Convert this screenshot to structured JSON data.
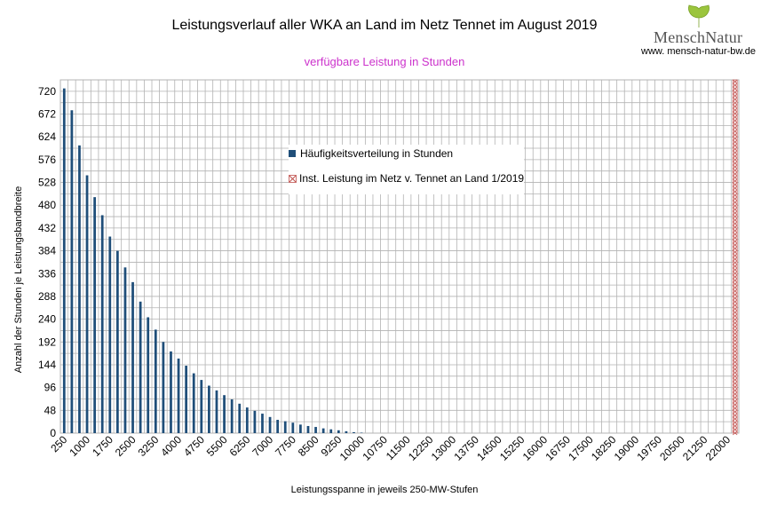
{
  "header": {
    "title": "Leistungsverlauf aller WKA an Land im Netz Tennet im August 2019",
    "subtitle": "verfügbare Leistung in Stunden",
    "subtitle_color": "#cc33cc"
  },
  "logo": {
    "text": "MenschNatur",
    "url": "www. mensch-natur-bw.de",
    "leaf_color": "#9bc53d"
  },
  "chart_data": {
    "type": "bar",
    "title": "Leistungsverlauf aller WKA an Land im Netz Tennet im August 2019",
    "subtitle": "verfügbare Leistung in Stunden",
    "xlabel": "Leistungsspanne in jeweils 250-MW-Stufen",
    "ylabel": "Anzahl der Stunden je Leistungsbandbreite",
    "ylim": [
      0,
      744
    ],
    "yticks": [
      0,
      48,
      96,
      144,
      192,
      240,
      288,
      336,
      384,
      432,
      480,
      528,
      576,
      624,
      672,
      720
    ],
    "xtick_labels": [
      "250",
      "1000",
      "1750",
      "2500",
      "3250",
      "4000",
      "4750",
      "5500",
      "6250",
      "7000",
      "7750",
      "8500",
      "9250",
      "10000",
      "10750",
      "11500",
      "12250",
      "13000",
      "13750",
      "14500",
      "15250",
      "16000",
      "16750",
      "17500",
      "18250",
      "19000",
      "19750",
      "20500",
      "21250",
      "22000"
    ],
    "grid": true,
    "legend_position": "top-center",
    "bar_color": "#1f4e79",
    "categories": [
      250,
      500,
      750,
      1000,
      1250,
      1500,
      1750,
      2000,
      2250,
      2500,
      2750,
      3000,
      3250,
      3500,
      3750,
      4000,
      4250,
      4500,
      4750,
      5000,
      5250,
      5500,
      5750,
      6000,
      6250,
      6500,
      6750,
      7000,
      7250,
      7500,
      7750,
      8000,
      8250,
      8500,
      8750,
      9000,
      9250,
      9500,
      9750,
      10000
    ],
    "series": [
      {
        "name": "Häufigkeitsverteilung in Stunden",
        "values": [
          726,
          680,
          606,
          543,
          497,
          459,
          414,
          384,
          349,
          318,
          277,
          244,
          218,
          192,
          172,
          157,
          142,
          126,
          112,
          100,
          90,
          80,
          71,
          62,
          54,
          47,
          41,
          34,
          28,
          25,
          22,
          18,
          15,
          13,
          10,
          8,
          6,
          4,
          2,
          1
        ]
      },
      {
        "name": "Inst. Leistung im Netz v. Tennet an Land 1/2019",
        "x": 22250,
        "marker_color": "#c0504d"
      }
    ]
  }
}
